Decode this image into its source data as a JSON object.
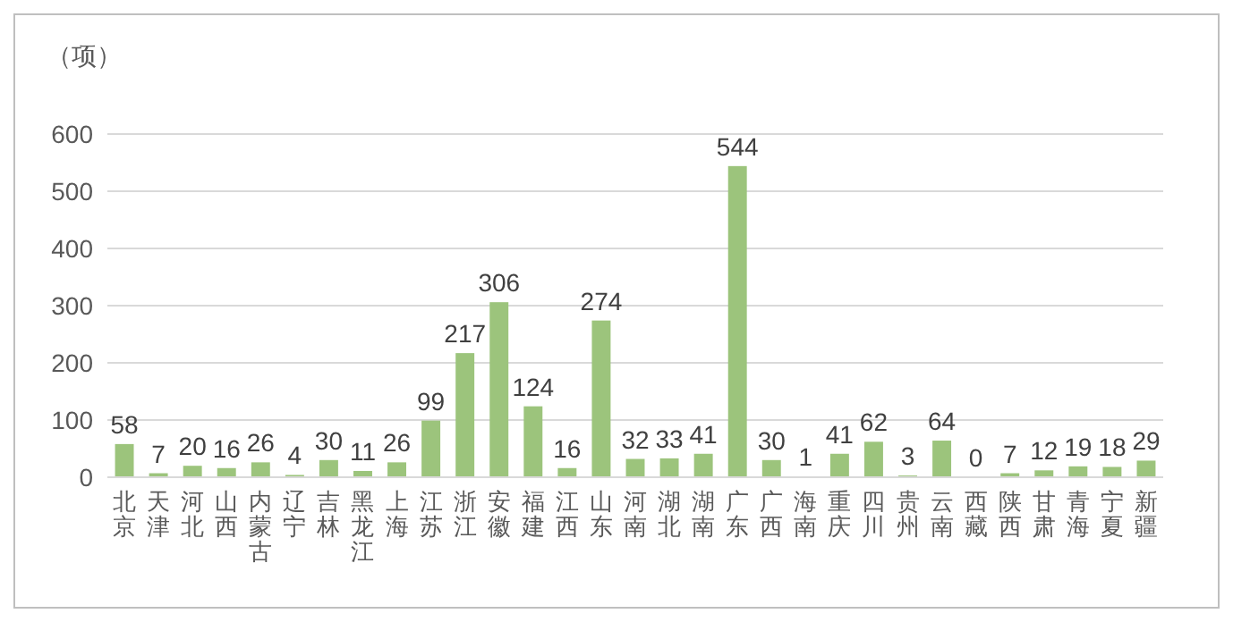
{
  "chart_data": {
    "type": "bar",
    "ylabel": "（项）",
    "categories": [
      "北京",
      "天津",
      "河北",
      "山西",
      "内蒙古",
      "辽宁",
      "吉林",
      "黑龙江",
      "上海",
      "江苏",
      "浙江",
      "安徽",
      "福建",
      "江西",
      "山东",
      "河南",
      "湖北",
      "湖南",
      "广东",
      "广西",
      "海南",
      "重庆",
      "四川",
      "贵州",
      "云南",
      "西藏",
      "陕西",
      "甘肃",
      "青海",
      "宁夏",
      "新疆"
    ],
    "values": [
      58,
      7,
      20,
      16,
      26,
      4,
      30,
      11,
      26,
      99,
      217,
      306,
      124,
      16,
      274,
      32,
      33,
      41,
      544,
      30,
      1,
      41,
      62,
      3,
      64,
      0,
      7,
      12,
      19,
      18,
      29
    ],
    "color": "#9cc47c",
    "ylim": [
      0,
      600
    ],
    "yticks": [
      0,
      100,
      200,
      300,
      400,
      500,
      600
    ],
    "grid": "y",
    "data_labels": true
  }
}
